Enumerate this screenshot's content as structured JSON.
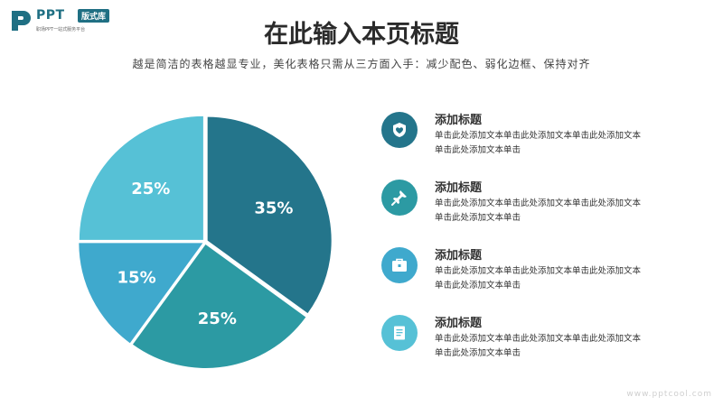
{
  "logo": {
    "word": "PPT",
    "badge": "版式库",
    "tagline": "职场PPT一站式服务平台",
    "color": "#1f6f83"
  },
  "header": {
    "title": "在此输入本页标题",
    "subtitle": "越是简洁的表格越显专业，美化表格只需从三方面入手：减少配色、弱化边框、保持对齐"
  },
  "chart_data": {
    "type": "pie",
    "slices": [
      {
        "label": "35%",
        "value": 35,
        "color": "#24758b"
      },
      {
        "label": "25%",
        "value": 25,
        "color": "#2c9aa3"
      },
      {
        "label": "15%",
        "value": 15,
        "color": "#3fa9cd"
      },
      {
        "label": "25%",
        "value": 25,
        "color": "#56c1d6"
      }
    ]
  },
  "items": [
    {
      "icon": "heart-shield-icon",
      "color": "#24758b",
      "title": "添加标题",
      "desc": "单击此处添加文本单击此处添加文本单击此处添加文本单击此处添加文本单击"
    },
    {
      "icon": "pushpin-icon",
      "color": "#2c9aa3",
      "title": "添加标题",
      "desc": "单击此处添加文本单击此处添加文本单击此处添加文本单击此处添加文本单击"
    },
    {
      "icon": "briefcase-icon",
      "color": "#3fa9cd",
      "title": "添加标题",
      "desc": "单击此处添加文本单击此处添加文本单击此处添加文本单击此处添加文本单击"
    },
    {
      "icon": "document-icon",
      "color": "#56c1d6",
      "title": "添加标题",
      "desc": "单击此处添加文本单击此处添加文本单击此处添加文本单击此处添加文本单击"
    }
  ],
  "watermark": "www.pptcool.com"
}
